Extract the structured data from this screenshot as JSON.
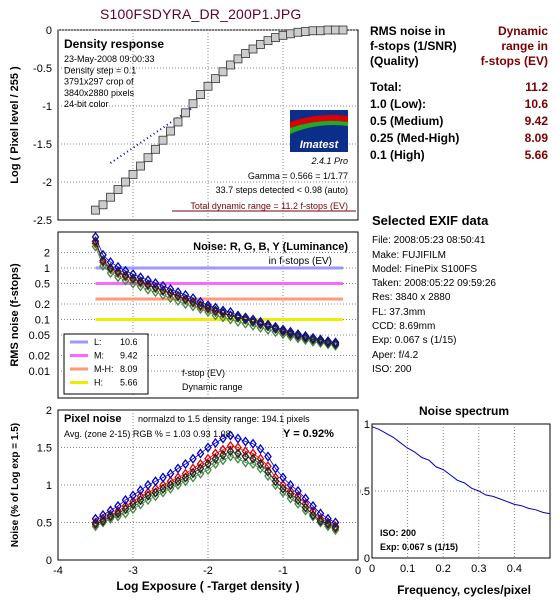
{
  "title": "S100FSDYRA_DR_200P1.JPG",
  "colors": {
    "title": "#600030",
    "red": "#7a0000",
    "blue": "#0000cc"
  },
  "rms_table": {
    "left_header": "RMS noise in\nf-stops (1/SNR)\n(Quality)",
    "right_header": "Dynamic\nrange in\nf-stops (EV)",
    "rows": [
      {
        "label": "Total:",
        "value": "11.2"
      },
      {
        "label": "1.0   (Low):",
        "value": "10.6"
      },
      {
        "label": "0.5   (Medium)",
        "value": "9.42"
      },
      {
        "label": "0.25 (Med-High)",
        "value": "8.09"
      },
      {
        "label": "0.1   (High)",
        "value": "5.66"
      }
    ]
  },
  "exif": {
    "heading": "Selected EXIF data",
    "lines": [
      "File:  2008:05:23 08:50:41",
      "Make:  FUJIFILM",
      "Model: FinePix S100FS",
      "Taken: 2008:05:22 09:59:26",
      "Res:   3840 x 2880",
      "FL:  37.3mm",
      "CCD:   8.69mm",
      "Exp:  0.067 s  (1/15)",
      "Aper:  f/4.2",
      "ISO:   200"
    ]
  },
  "chart_data": [
    {
      "type": "line",
      "panel": "density",
      "title": "Density response",
      "info": [
        "23-May-2008 09:00:33",
        "Density step = 0.1",
        "3791x297 crop of",
        "3840x2880 pixels",
        "24-bit color"
      ],
      "logo": "Imatest",
      "version": "2.4.1  Pro",
      "gamma_text": "Gamma = 0.566 = 1/1.77",
      "steps_text": "33.7 steps detected < 0.98 (auto)",
      "total_text": "Total dynamic range = 11.2 f-stops (EV)",
      "ylabel": "Log ( Pixel level / 255 )",
      "ylim": [
        -2.5,
        0
      ],
      "yticks": [
        "0",
        "-0.5",
        "-1",
        "-1.5",
        "-2",
        "-2.5"
      ],
      "x": [
        -3.5,
        -3.4,
        -3.3,
        -3.2,
        -3.1,
        -3.0,
        -2.9,
        -2.8,
        -2.7,
        -2.6,
        -2.5,
        -2.4,
        -2.3,
        -2.2,
        -2.1,
        -2.0,
        -1.9,
        -1.8,
        -1.7,
        -1.6,
        -1.5,
        -1.4,
        -1.3,
        -1.2,
        -1.1,
        -1.0,
        -0.9,
        -0.8,
        -0.7,
        -0.6,
        -0.5,
        -0.4,
        -0.3,
        -0.2
      ],
      "y": [
        -2.37,
        -2.3,
        -2.2,
        -2.1,
        -2.0,
        -1.9,
        -1.79,
        -1.68,
        -1.57,
        -1.45,
        -1.33,
        -1.21,
        -1.09,
        -0.97,
        -0.85,
        -0.74,
        -0.64,
        -0.55,
        -0.46,
        -0.38,
        -0.31,
        -0.25,
        -0.19,
        -0.14,
        -0.1,
        -0.07,
        -0.05,
        -0.03,
        -0.02,
        -0.01,
        -0.01,
        0,
        0,
        0
      ],
      "fit_x": [
        -3.3,
        -2.2
      ],
      "fit_y": [
        -1.75,
        -1.02
      ]
    },
    {
      "type": "line",
      "panel": "noise_fstops",
      "title": "Noise: R, G, B, Y (Luminance)",
      "subtitle": "in f-stops (EV)",
      "ylabel": "RMS noise (f-stops)",
      "yscale": "log",
      "ylim": [
        0.003,
        5
      ],
      "yticks": [
        "2",
        "1",
        "0.5",
        "0.2",
        "0.1",
        "0.05",
        "0.02",
        "0.01"
      ],
      "thresholds": [
        {
          "name": "L:",
          "value": "10.6",
          "level": 1.0,
          "color": "#9999ff"
        },
        {
          "name": "M:",
          "value": "9.42",
          "level": 0.5,
          "color": "#ff66ff"
        },
        {
          "name": "M-H:",
          "value": "8.09",
          "level": 0.25,
          "color": "#ff9977"
        },
        {
          "name": "H:",
          "value": "5.66",
          "level": 0.1,
          "color": "#eeee00"
        }
      ],
      "legend_note1": "f-stop (EV)",
      "legend_note2": "Dynamic range",
      "x": [
        -3.5,
        -3.4,
        -3.3,
        -3.2,
        -3.1,
        -3.0,
        -2.9,
        -2.8,
        -2.7,
        -2.6,
        -2.5,
        -2.4,
        -2.3,
        -2.2,
        -2.1,
        -2.0,
        -1.9,
        -1.8,
        -1.7,
        -1.6,
        -1.5,
        -1.4,
        -1.3,
        -1.2,
        -1.1,
        -1.0,
        -0.9,
        -0.8,
        -0.7,
        -0.6,
        -0.5,
        -0.4,
        -0.3
      ],
      "series": [
        {
          "name": "R",
          "color": "#dd0000",
          "values": [
            3.0,
            1.3,
            0.95,
            0.8,
            0.68,
            0.6,
            0.52,
            0.46,
            0.41,
            0.36,
            0.32,
            0.28,
            0.24,
            0.21,
            0.18,
            0.16,
            0.14,
            0.13,
            0.12,
            0.11,
            0.1,
            0.09,
            0.08,
            0.074,
            0.066,
            0.058,
            0.052,
            0.048,
            0.044,
            0.041,
            0.038,
            0.036,
            0.034
          ]
        },
        {
          "name": "G",
          "color": "#448844",
          "values": [
            2.6,
            1.1,
            0.8,
            0.66,
            0.57,
            0.5,
            0.44,
            0.38,
            0.34,
            0.3,
            0.26,
            0.23,
            0.2,
            0.18,
            0.16,
            0.14,
            0.12,
            0.11,
            0.1,
            0.09,
            0.083,
            0.076,
            0.069,
            0.063,
            0.057,
            0.052,
            0.047,
            0.043,
            0.04,
            0.037,
            0.035,
            0.033,
            0.031
          ]
        },
        {
          "name": "B",
          "color": "#0000cc",
          "values": [
            4.0,
            1.8,
            1.3,
            1.05,
            0.88,
            0.76,
            0.66,
            0.58,
            0.51,
            0.45,
            0.39,
            0.34,
            0.3,
            0.26,
            0.22,
            0.19,
            0.17,
            0.15,
            0.14,
            0.12,
            0.11,
            0.1,
            0.09,
            0.08,
            0.072,
            0.064,
            0.058,
            0.052,
            0.048,
            0.044,
            0.041,
            0.038,
            0.036
          ]
        },
        {
          "name": "Y",
          "color": "#222222",
          "values": [
            3.3,
            1.4,
            1.0,
            0.85,
            0.72,
            0.63,
            0.55,
            0.48,
            0.42,
            0.37,
            0.33,
            0.29,
            0.25,
            0.22,
            0.19,
            0.17,
            0.15,
            0.135,
            0.12,
            0.11,
            0.1,
            0.09,
            0.082,
            0.074,
            0.066,
            0.059,
            0.053,
            0.048,
            0.044,
            0.041,
            0.038,
            0.035,
            0.033
          ]
        }
      ]
    },
    {
      "type": "line",
      "panel": "pixel_noise",
      "title": "Pixel noise",
      "note": "normalzd to 1.5 density range: 194.1 pixels",
      "avg": "Avg. (zone 2-15) RGB % = 1.03  0.93  1.08;",
      "yval": "Y = 0.92%",
      "ylabel": "Noise (% of Log exp = 1.5)",
      "xlabel": "Log Exposure ( -Target density )",
      "ylim": [
        0,
        2
      ],
      "xlim": [
        -4,
        0
      ],
      "yticks": [
        "2",
        "1.5",
        "1",
        "0.5",
        "0"
      ],
      "xticks": [
        "-4",
        "-3",
        "-2",
        "-1",
        "0"
      ],
      "x": [
        -3.5,
        -3.4,
        -3.3,
        -3.2,
        -3.1,
        -3.0,
        -2.9,
        -2.8,
        -2.7,
        -2.6,
        -2.5,
        -2.4,
        -2.3,
        -2.2,
        -2.1,
        -2.0,
        -1.9,
        -1.8,
        -1.7,
        -1.6,
        -1.5,
        -1.4,
        -1.3,
        -1.2,
        -1.1,
        -1.0,
        -0.9,
        -0.8,
        -0.7,
        -0.6,
        -0.5,
        -0.4,
        -0.3
      ],
      "series": [
        {
          "name": "R",
          "color": "#dd0000",
          "values": [
            0.5,
            0.55,
            0.6,
            0.65,
            0.72,
            0.78,
            0.85,
            0.9,
            0.95,
            1.0,
            1.05,
            1.1,
            1.15,
            1.22,
            1.28,
            1.35,
            1.42,
            1.47,
            1.52,
            1.5,
            1.45,
            1.42,
            1.35,
            1.25,
            1.1,
            1.0,
            0.92,
            0.85,
            0.75,
            0.65,
            0.55,
            0.5,
            0.45
          ]
        },
        {
          "name": "G",
          "color": "#448844",
          "values": [
            0.45,
            0.5,
            0.55,
            0.58,
            0.62,
            0.68,
            0.74,
            0.8,
            0.85,
            0.9,
            0.95,
            1.0,
            1.05,
            1.1,
            1.15,
            1.2,
            1.28,
            1.33,
            1.38,
            1.35,
            1.3,
            1.28,
            1.22,
            1.12,
            1.0,
            0.9,
            0.82,
            0.75,
            0.66,
            0.58,
            0.5,
            0.45,
            0.4
          ]
        },
        {
          "name": "B",
          "color": "#0000cc",
          "values": [
            0.55,
            0.6,
            0.66,
            0.72,
            0.8,
            0.86,
            0.93,
            1.0,
            1.05,
            1.1,
            1.15,
            1.22,
            1.28,
            1.35,
            1.42,
            1.5,
            1.56,
            1.62,
            1.66,
            1.62,
            1.58,
            1.55,
            1.48,
            1.38,
            1.22,
            1.1,
            1.0,
            0.92,
            0.82,
            0.72,
            0.62,
            0.55,
            0.5
          ]
        },
        {
          "name": "Y",
          "color": "#222222",
          "values": [
            0.48,
            0.52,
            0.58,
            0.62,
            0.68,
            0.74,
            0.8,
            0.86,
            0.9,
            0.95,
            1.0,
            1.05,
            1.1,
            1.16,
            1.22,
            1.28,
            1.35,
            1.4,
            1.45,
            1.42,
            1.38,
            1.35,
            1.28,
            1.18,
            1.05,
            0.95,
            0.88,
            0.8,
            0.7,
            0.6,
            0.52,
            0.48,
            0.43
          ]
        }
      ]
    },
    {
      "type": "line",
      "panel": "spectrum",
      "title": "Noise spectrum",
      "xlabel": "Frequency, cycles/pixel",
      "xlim": [
        0,
        0.5
      ],
      "ylim": [
        0,
        1
      ],
      "xticks": [
        "0",
        "0.1",
        "0.2",
        "0.3",
        "0.4"
      ],
      "yticks": [
        "1",
        "0.5",
        "0"
      ],
      "iso_text": "ISO:  200",
      "exp_text": "Exp:  0.067 s  (1/15)",
      "x": [
        0.0,
        0.02,
        0.04,
        0.06,
        0.08,
        0.1,
        0.12,
        0.14,
        0.16,
        0.18,
        0.2,
        0.22,
        0.24,
        0.26,
        0.28,
        0.3,
        0.32,
        0.34,
        0.36,
        0.38,
        0.4,
        0.42,
        0.44,
        0.46,
        0.48,
        0.5
      ],
      "y": [
        0.98,
        0.96,
        0.93,
        0.9,
        0.86,
        0.82,
        0.79,
        0.75,
        0.73,
        0.68,
        0.66,
        0.62,
        0.58,
        0.56,
        0.52,
        0.5,
        0.47,
        0.46,
        0.44,
        0.42,
        0.4,
        0.39,
        0.37,
        0.36,
        0.34,
        0.33
      ]
    }
  ]
}
